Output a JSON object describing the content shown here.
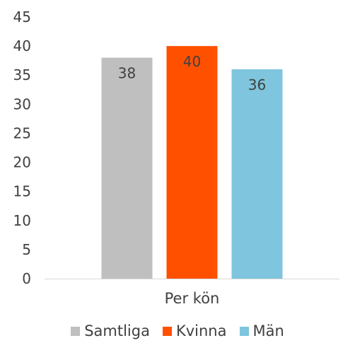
{
  "chart_data": {
    "type": "bar",
    "categories": [
      "Per kön"
    ],
    "series": [
      {
        "name": "Samtliga",
        "values": [
          38
        ],
        "color": "#bfbfbf"
      },
      {
        "name": "Kvinna",
        "values": [
          40
        ],
        "color": "#ff5000"
      },
      {
        "name": "Män",
        "values": [
          36
        ],
        "color": "#7ec5dd"
      }
    ],
    "yticks": [
      "0",
      "5",
      "10",
      "15",
      "20",
      "25",
      "30",
      "35",
      "40",
      "45"
    ],
    "ylim": [
      0,
      45
    ],
    "data_labels": [
      "38",
      "40",
      "36"
    ],
    "title": "",
    "xlabel": "",
    "ylabel": "",
    "grid": false,
    "legend": "bottom"
  }
}
